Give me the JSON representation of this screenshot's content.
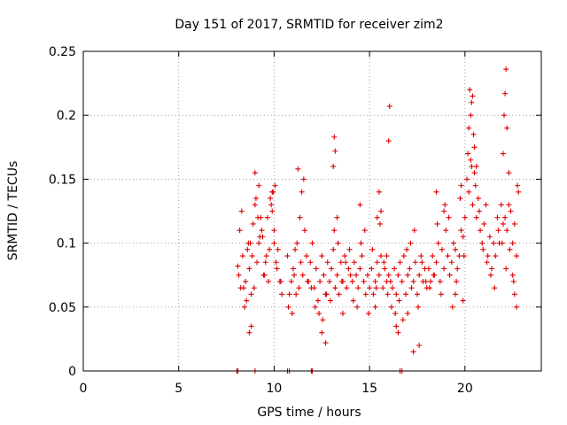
{
  "chart_data": {
    "type": "scatter",
    "title": "Day 151 of 2017, SRMTID for receiver zim2",
    "xlabel": "GPS time / hours",
    "ylabel": "SRMTID / TECUs",
    "xlim": [
      0,
      24
    ],
    "ylim": [
      0,
      0.25
    ],
    "x_ticks": [
      0,
      5,
      10,
      15,
      20
    ],
    "x_tick_labels": [
      "0",
      "5",
      "10",
      "15",
      "20"
    ],
    "y_ticks": [
      0,
      0.05,
      0.1,
      0.15,
      0.2,
      0.25
    ],
    "y_tick_labels": [
      "0",
      "0.05",
      "0.1",
      "0.15",
      "0.2",
      "0.25"
    ],
    "grid": true,
    "series": [
      {
        "name": "SRMTID",
        "color": "#e00000",
        "marker": "plus",
        "x": [
          8.1,
          8.2,
          8.3,
          8.4,
          8.5,
          8.6,
          8.7,
          8.8,
          8.9,
          9.0,
          9.1,
          9.2,
          9.3,
          9.4,
          9.5,
          9.6,
          9.7,
          9.8,
          9.9,
          10.0,
          10.1,
          10.2,
          10.3,
          10.4,
          8.15,
          8.35,
          8.55,
          8.75,
          8.95,
          9.15,
          9.35,
          9.55,
          9.75,
          9.95,
          10.15,
          10.35,
          8.25,
          8.45,
          8.65,
          8.85,
          9.05,
          9.25,
          9.45,
          9.65,
          9.85,
          10.05,
          9.0,
          9.2,
          9.9,
          10.0,
          8.8,
          8.7,
          10.7,
          10.8,
          10.9,
          11.0,
          11.1,
          11.2,
          11.3,
          11.4,
          11.5,
          11.6,
          11.7,
          11.8,
          11.9,
          12.0,
          10.75,
          10.95,
          11.15,
          11.35,
          11.55,
          11.75,
          11.95,
          11.25,
          11.45,
          11.05,
          12.1,
          12.2,
          12.3,
          12.4,
          12.5,
          12.6,
          12.7,
          12.8,
          12.9,
          13.0,
          13.1,
          13.2,
          13.3,
          13.4,
          13.5,
          13.6,
          13.7,
          13.8,
          13.9,
          14.0,
          12.15,
          12.35,
          12.55,
          12.75,
          12.95,
          13.15,
          13.35,
          13.55,
          13.75,
          13.95,
          13.1,
          13.2,
          13.15,
          12.5,
          12.7,
          13.6,
          13.3,
          14.1,
          14.2,
          14.3,
          14.4,
          14.5,
          14.6,
          14.7,
          14.8,
          14.9,
          15.0,
          15.1,
          15.2,
          15.3,
          15.4,
          15.5,
          15.6,
          15.7,
          15.8,
          15.9,
          16.0,
          14.15,
          14.35,
          14.55,
          14.75,
          14.95,
          15.15,
          15.35,
          15.55,
          15.75,
          15.95,
          15.5,
          15.6,
          15.4,
          15.9,
          16.0,
          16.05,
          15.3,
          14.5,
          16.1,
          16.2,
          16.3,
          16.4,
          16.5,
          16.6,
          16.7,
          16.8,
          16.9,
          17.0,
          17.1,
          17.2,
          17.3,
          17.4,
          17.5,
          17.6,
          17.7,
          17.8,
          17.9,
          18.0,
          16.15,
          16.35,
          16.55,
          16.75,
          16.95,
          17.15,
          17.35,
          17.55,
          17.75,
          17.95,
          16.4,
          16.5,
          17.3,
          17.6,
          17.0,
          18.1,
          18.2,
          18.3,
          18.4,
          18.5,
          18.6,
          18.7,
          18.8,
          18.9,
          19.0,
          19.1,
          19.2,
          19.3,
          19.4,
          19.5,
          19.6,
          19.7,
          19.8,
          19.9,
          20.0,
          18.15,
          18.35,
          18.55,
          18.75,
          18.95,
          19.15,
          19.35,
          19.55,
          19.75,
          19.95,
          18.5,
          18.9,
          19.5,
          19.8,
          19.9,
          20.1,
          20.2,
          20.3,
          20.4,
          20.5,
          20.6,
          20.7,
          20.8,
          20.9,
          21.0,
          21.1,
          21.2,
          21.3,
          21.4,
          21.5,
          21.6,
          21.7,
          21.8,
          21.9,
          22.0,
          20.15,
          20.35,
          20.55,
          20.75,
          20.95,
          21.15,
          21.35,
          21.55,
          21.75,
          21.95,
          20.2,
          20.3,
          20.35,
          20.4,
          20.25,
          20.5,
          20.6,
          20.45,
          22.1,
          22.2,
          22.3,
          22.4,
          22.5,
          22.6,
          22.7,
          22.8,
          22.15,
          22.35,
          22.55,
          22.75,
          22.0,
          22.05,
          22.1,
          22.15,
          22.2,
          22.3,
          22.5,
          22.6,
          22.7,
          8.05,
          8.1,
          9.0,
          10.7,
          10.8,
          11.95,
          12.0,
          16.6,
          16.7
        ],
        "y": [
          0.082,
          0.11,
          0.125,
          0.065,
          0.07,
          0.095,
          0.08,
          0.06,
          0.115,
          0.13,
          0.085,
          0.1,
          0.12,
          0.105,
          0.075,
          0.09,
          0.07,
          0.135,
          0.125,
          0.11,
          0.085,
          0.095,
          0.07,
          0.06,
          0.075,
          0.09,
          0.055,
          0.1,
          0.065,
          0.12,
          0.11,
          0.085,
          0.095,
          0.14,
          0.08,
          0.07,
          0.065,
          0.05,
          0.1,
          0.09,
          0.135,
          0.105,
          0.075,
          0.12,
          0.13,
          0.145,
          0.155,
          0.145,
          0.14,
          0.1,
          0.035,
          0.03,
          0.09,
          0.06,
          0.07,
          0.08,
          0.095,
          0.1,
          0.065,
          0.085,
          0.075,
          0.11,
          0.09,
          0.07,
          0.085,
          0.1,
          0.05,
          0.045,
          0.06,
          0.12,
          0.15,
          0.07,
          0.065,
          0.158,
          0.14,
          0.075,
          0.065,
          0.08,
          0.055,
          0.07,
          0.09,
          0.075,
          0.06,
          0.085,
          0.07,
          0.08,
          0.095,
          0.065,
          0.075,
          0.06,
          0.085,
          0.07,
          0.09,
          0.065,
          0.08,
          0.075,
          0.05,
          0.045,
          0.04,
          0.06,
          0.055,
          0.11,
          0.1,
          0.07,
          0.085,
          0.095,
          0.16,
          0.172,
          0.183,
          0.03,
          0.022,
          0.045,
          0.12,
          0.07,
          0.085,
          0.075,
          0.065,
          0.08,
          0.09,
          0.07,
          0.06,
          0.075,
          0.065,
          0.08,
          0.06,
          0.07,
          0.085,
          0.075,
          0.09,
          0.065,
          0.08,
          0.07,
          0.075,
          0.055,
          0.05,
          0.1,
          0.11,
          0.045,
          0.095,
          0.065,
          0.115,
          0.085,
          0.06,
          0.14,
          0.125,
          0.12,
          0.09,
          0.18,
          0.207,
          0.05,
          0.13,
          0.07,
          0.065,
          0.08,
          0.06,
          0.075,
          0.085,
          0.07,
          0.09,
          0.06,
          0.075,
          0.08,
          0.065,
          0.07,
          0.085,
          0.06,
          0.075,
          0.09,
          0.07,
          0.08,
          0.065,
          0.05,
          0.045,
          0.055,
          0.04,
          0.095,
          0.1,
          0.11,
          0.05,
          0.085,
          0.07,
          0.035,
          0.03,
          0.015,
          0.02,
          0.045,
          0.08,
          0.07,
          0.09,
          0.075,
          0.085,
          0.1,
          0.07,
          0.095,
          0.08,
          0.11,
          0.09,
          0.075,
          0.085,
          0.1,
          0.095,
          0.08,
          0.09,
          0.11,
          0.105,
          0.12,
          0.065,
          0.075,
          0.115,
          0.06,
          0.13,
          0.12,
          0.05,
          0.07,
          0.135,
          0.09,
          0.14,
          0.125,
          0.06,
          0.145,
          0.055,
          0.15,
          0.14,
          0.165,
          0.13,
          0.155,
          0.12,
          0.135,
          0.11,
          0.1,
          0.115,
          0.13,
          0.09,
          0.105,
          0.08,
          0.1,
          0.09,
          0.12,
          0.1,
          0.13,
          0.115,
          0.17,
          0.16,
          0.145,
          0.125,
          0.095,
          0.085,
          0.075,
          0.065,
          0.11,
          0.1,
          0.19,
          0.2,
          0.21,
          0.215,
          0.22,
          0.175,
          0.16,
          0.185,
          0.12,
          0.11,
          0.13,
          0.125,
          0.1,
          0.115,
          0.09,
          0.14,
          0.08,
          0.095,
          0.07,
          0.145,
          0.17,
          0.2,
          0.217,
          0.236,
          0.19,
          0.155,
          0.075,
          0.06,
          0.05,
          0,
          0,
          0,
          0,
          0,
          0,
          0,
          0,
          0
        ]
      }
    ]
  }
}
